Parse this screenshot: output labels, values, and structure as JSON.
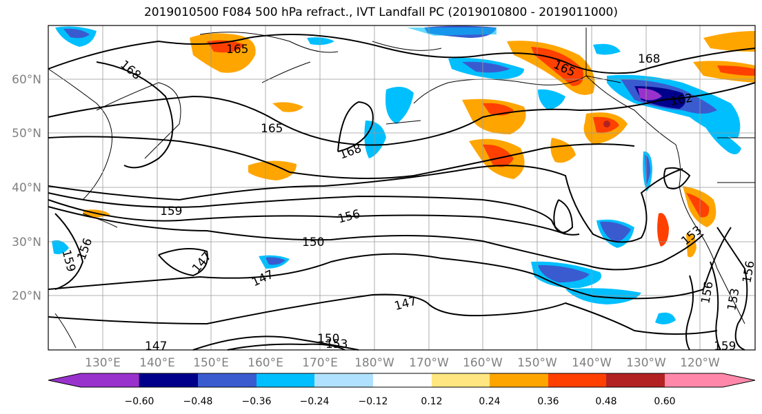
{
  "title": "2019010500 F084 500 hPa refract., IVT Landfall PC (2019010800 - 2019011000)",
  "map": {
    "lat_labels": [
      "60°N",
      "50°N",
      "40°N",
      "30°N",
      "20°N"
    ],
    "lon_labels": [
      "130°E",
      "140°E",
      "150°E",
      "160°E",
      "170°E",
      "180°W",
      "170°W",
      "160°W",
      "150°W",
      "140°W",
      "130°W",
      "120°W"
    ],
    "contour_labels": [
      "165",
      "168",
      "168",
      "165",
      "168",
      "165",
      "162",
      "159",
      "156",
      "156",
      "150",
      "147",
      "147",
      "147",
      "147",
      "150",
      "153",
      "159",
      "153",
      "156",
      "153",
      "156",
      "159"
    ],
    "grid": true
  },
  "colorbar": {
    "ticks": [
      "−0.60",
      "−0.48",
      "−0.36",
      "−0.24",
      "−0.12",
      "0.12",
      "0.24",
      "0.36",
      "0.48",
      "0.60"
    ],
    "colors": [
      "#9932cc",
      "#00008b",
      "#3a5bd0",
      "#00bfff",
      "#b0e2ff",
      "#ffffff",
      "#ffe680",
      "#ffa500",
      "#ff4000",
      "#b22222",
      "#ff88aa"
    ],
    "extend": "both"
  }
}
